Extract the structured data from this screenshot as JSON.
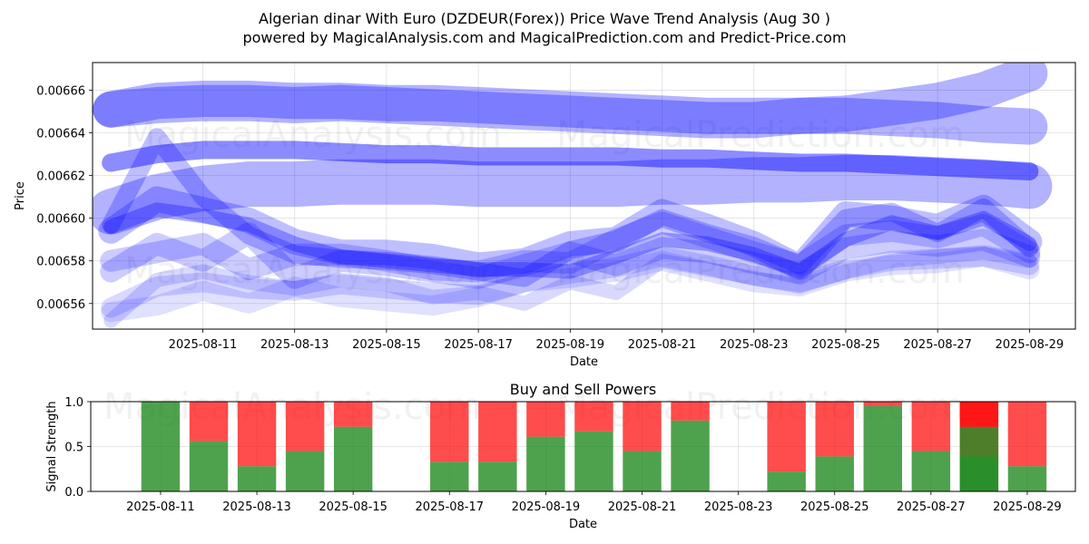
{
  "title_line1": "Algerian dinar With Euro (DZDEUR(Forex)) Price Wave Trend Analysis (Aug 30 )",
  "title_line2": "powered by MagicalAnalysis.com and MagicalPrediction.com and Predict-Price.com",
  "watermark_1": "MagicalAnalysis.com",
  "watermark_2": "MagicalPrediction.com",
  "colors": {
    "wave": "#0000ff",
    "buy": "#228b22",
    "sell": "#ff0000",
    "grid": "#b0b0b0"
  },
  "chart_data": [
    {
      "type": "line",
      "xlabel": "Date",
      "ylabel": "Price",
      "x_start": "2025-08-09",
      "x_end": "2025-08-29",
      "xlim": [
        "2025-08-09",
        "2025-08-30"
      ],
      "ylim": [
        0.006548,
        0.006673
      ],
      "xticks": [
        "2025-08-11",
        "2025-08-13",
        "2025-08-15",
        "2025-08-17",
        "2025-08-19",
        "2025-08-21",
        "2025-08-23",
        "2025-08-25",
        "2025-08-27",
        "2025-08-29"
      ],
      "yticks": [
        "0.00656",
        "0.00658",
        "0.00660",
        "0.00662",
        "0.00664",
        "0.00666"
      ],
      "grid": true,
      "series": [
        {
          "values": [
            0.006651,
            0.006655,
            0.006656,
            0.006656,
            0.006655,
            0.006655,
            0.006654,
            0.006654,
            0.006653,
            0.006652,
            0.006651,
            0.00665,
            0.006649,
            0.006648,
            0.006648,
            0.006648,
            0.006649,
            0.006652,
            0.006655,
            0.00666,
            0.006668
          ],
          "width": 40,
          "opacity": 0.3
        },
        {
          "values": [
            0.006651,
            0.006653,
            0.006654,
            0.006654,
            0.006653,
            0.006654,
            0.006653,
            0.006652,
            0.006651,
            0.00665,
            0.006649,
            0.006648,
            0.006647,
            0.006646,
            0.006646,
            0.006648,
            0.006648,
            0.006647,
            0.006646,
            0.006644,
            0.006643
          ],
          "width": 40,
          "opacity": 0.3
        },
        {
          "values": [
            0.006626,
            0.00663,
            0.006632,
            0.006632,
            0.006632,
            0.006631,
            0.00663,
            0.00663,
            0.006629,
            0.006629,
            0.006629,
            0.006629,
            0.006628,
            0.006628,
            0.006627,
            0.006626,
            0.006626,
            0.006625,
            0.006624,
            0.006623,
            0.006622
          ],
          "width": 20,
          "opacity": 0.45
        },
        {
          "values": [
            0.006603,
            0.00661,
            0.006614,
            0.006616,
            0.006616,
            0.006617,
            0.006617,
            0.006617,
            0.006616,
            0.006616,
            0.006616,
            0.006616,
            0.006617,
            0.006617,
            0.006618,
            0.006618,
            0.006619,
            0.006619,
            0.006618,
            0.006617,
            0.006615
          ],
          "width": 50,
          "opacity": 0.3
        },
        {
          "values": [
            0.006594,
            0.006609,
            0.006604,
            0.006599,
            0.006589,
            0.006584,
            0.006584,
            0.006582,
            0.006578,
            0.00658,
            0.006588,
            0.00659,
            0.006603,
            0.006596,
            0.006588,
            0.006577,
            0.006602,
            0.0066,
            0.006596,
            0.006605,
            0.006589
          ],
          "width": 28,
          "opacity": 0.25
        },
        {
          "values": [
            0.006597,
            0.006638,
            0.00661,
            0.006592,
            0.006583,
            0.006581,
            0.00658,
            0.006578,
            0.006575,
            0.006572,
            0.006585,
            0.00659,
            0.0066,
            0.006593,
            0.006587,
            0.006578,
            0.0066,
            0.006603,
            0.006593,
            0.006605,
            0.006586
          ],
          "width": 20,
          "opacity": 0.25
        },
        {
          "values": [
            0.006596,
            0.006604,
            0.006601,
            0.006597,
            0.006588,
            0.006582,
            0.00658,
            0.006578,
            0.006576,
            0.006576,
            0.006575,
            0.006582,
            0.00659,
            0.006588,
            0.006583,
            0.006575,
            0.00659,
            0.006598,
            0.006593,
            0.0066,
            0.006588
          ],
          "width": 16,
          "opacity": 0.3
        },
        {
          "values": [
            0.00658,
            0.006584,
            0.006588,
            0.006576,
            0.006583,
            0.006583,
            0.00658,
            0.006576,
            0.006575,
            0.00658,
            0.006579,
            0.00659,
            0.006598,
            0.006591,
            0.006584,
            0.006578,
            0.006592,
            0.006594,
            0.006591,
            0.006597,
            0.006584
          ],
          "width": 24,
          "opacity": 0.2
        },
        {
          "values": [
            0.006575,
            0.006588,
            0.00658,
            0.006593,
            0.006572,
            0.00658,
            0.006578,
            0.006575,
            0.006572,
            0.006578,
            0.006584,
            0.006578,
            0.006586,
            0.006584,
            0.006579,
            0.006574,
            0.006586,
            0.006589,
            0.006587,
            0.00659,
            0.006582
          ],
          "width": 24,
          "opacity": 0.2
        },
        {
          "values": [
            0.006558,
            0.006568,
            0.00657,
            0.006567,
            0.006566,
            0.006569,
            0.006567,
            0.006565,
            0.006564,
            0.00657,
            0.006574,
            0.006577,
            0.006582,
            0.006578,
            0.006573,
            0.00657,
            0.006576,
            0.00658,
            0.006581,
            0.006582,
            0.006578
          ],
          "width": 22,
          "opacity": 0.15
        },
        {
          "values": [
            0.006552,
            0.006571,
            0.006575,
            0.00657,
            0.006567,
            0.006571,
            0.006569,
            0.006563,
            0.006565,
            0.00656,
            0.00657,
            0.006565,
            0.00658,
            0.006576,
            0.006572,
            0.006568,
            0.006575,
            0.00658,
            0.006582,
            0.006584,
            0.00658
          ],
          "width": 16,
          "opacity": 0.15
        },
        {
          "values": [
            0.006556,
            0.006559,
            0.006566,
            0.00656,
            0.006568,
            0.006563,
            0.006561,
            0.006559,
            0.006563,
            0.00657,
            0.006572,
            0.006575,
            0.00658,
            0.006575,
            0.00657,
            0.006568,
            0.006575,
            0.006578,
            0.006579,
            0.006582,
            0.006576
          ],
          "width": 22,
          "opacity": 0.12
        }
      ]
    },
    {
      "type": "bar",
      "title": "Buy and Sell Powers",
      "xlabel": "Date",
      "ylabel": "Signal Strength",
      "ylim": [
        0,
        1
      ],
      "yticks": [
        "0.0",
        "0.5",
        "1.0"
      ],
      "xticks": [
        "2025-08-11",
        "2025-08-13",
        "2025-08-15",
        "2025-08-17",
        "2025-08-19",
        "2025-08-21",
        "2025-08-23",
        "2025-08-25",
        "2025-08-27",
        "2025-08-29"
      ],
      "categories": [
        "2025-08-11",
        "2025-08-12",
        "2025-08-13",
        "2025-08-14",
        "2025-08-15",
        "2025-08-17",
        "2025-08-18",
        "2025-08-19",
        "2025-08-20",
        "2025-08-21",
        "2025-08-22",
        "2025-08-24",
        "2025-08-25",
        "2025-08-26",
        "2025-08-27",
        "2025-08-28",
        "2025-08-28",
        "2025-08-29"
      ],
      "buy": [
        1.0,
        0.56,
        0.28,
        0.45,
        0.72,
        0.33,
        0.33,
        0.61,
        0.67,
        0.45,
        0.79,
        0.22,
        0.39,
        0.95,
        0.45,
        0.39,
        0.72,
        0.28
      ],
      "sell": [
        0.0,
        0.44,
        0.72,
        0.55,
        0.28,
        0.67,
        0.67,
        0.39,
        0.33,
        0.55,
        0.21,
        0.78,
        0.61,
        0.05,
        0.55,
        0.61,
        0.28,
        0.72
      ]
    }
  ]
}
